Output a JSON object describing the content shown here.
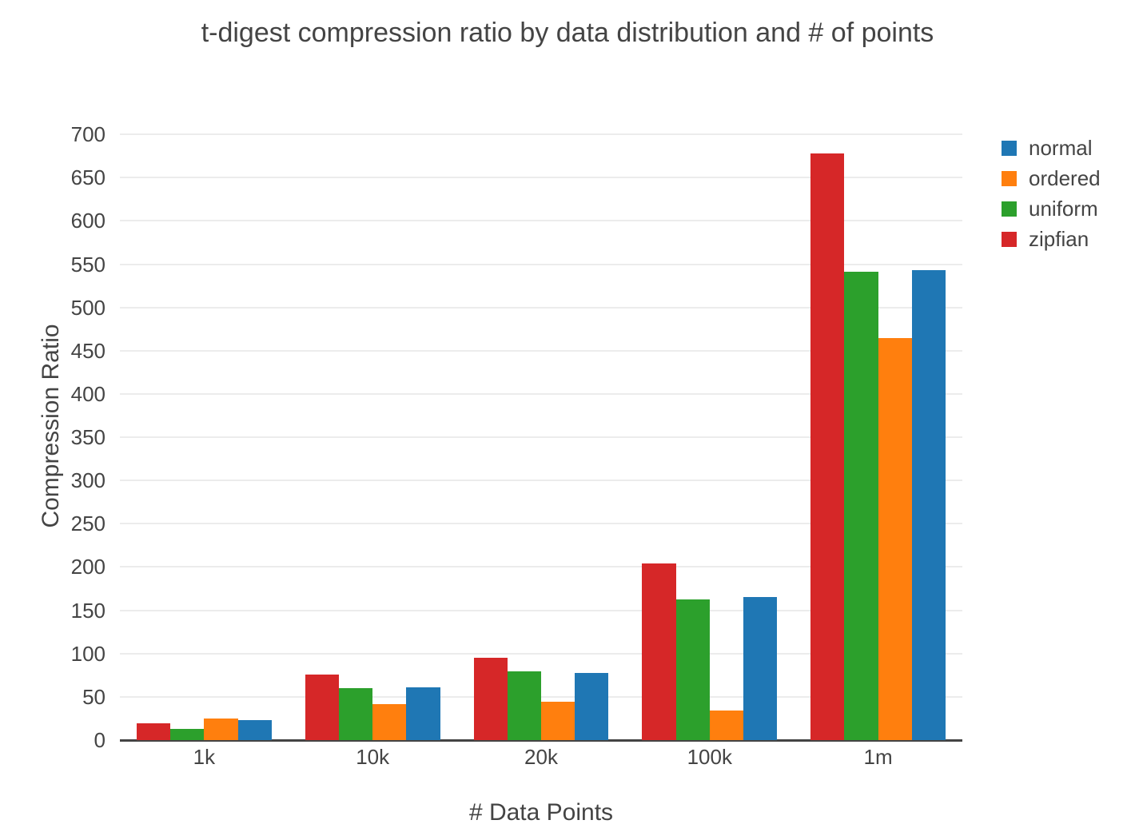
{
  "title": "t-digest compression ratio by data distribution and # of points",
  "chart_data": {
    "type": "bar",
    "title": "t-digest compression ratio by data distribution and # of points",
    "xlabel": "# Data Points",
    "ylabel": "Compression Ratio",
    "categories": [
      "1k",
      "10k",
      "20k",
      "100k",
      "1m"
    ],
    "series": [
      {
        "name": "zipfian",
        "color": "#d62728",
        "values": [
          19,
          76,
          95,
          204,
          678
        ]
      },
      {
        "name": "uniform",
        "color": "#2ca02c",
        "values": [
          13,
          60,
          79,
          163,
          541
        ]
      },
      {
        "name": "ordered",
        "color": "#ff7f0e",
        "values": [
          25,
          42,
          44,
          34,
          465
        ]
      },
      {
        "name": "normal",
        "color": "#1f77b4",
        "values": [
          23,
          61,
          78,
          165,
          543
        ]
      }
    ],
    "legend_order": [
      "normal",
      "ordered",
      "uniform",
      "zipfian"
    ],
    "legend_position": "top-right",
    "yticks": [
      0,
      50,
      100,
      150,
      200,
      250,
      300,
      350,
      400,
      450,
      500,
      550,
      600,
      650,
      700
    ],
    "ylim": [
      0,
      726
    ],
    "grid": true,
    "background_color": "#ffffff",
    "gridline_color": "#ececec",
    "axis_line_color": "#444444",
    "text_color": "#444444"
  }
}
